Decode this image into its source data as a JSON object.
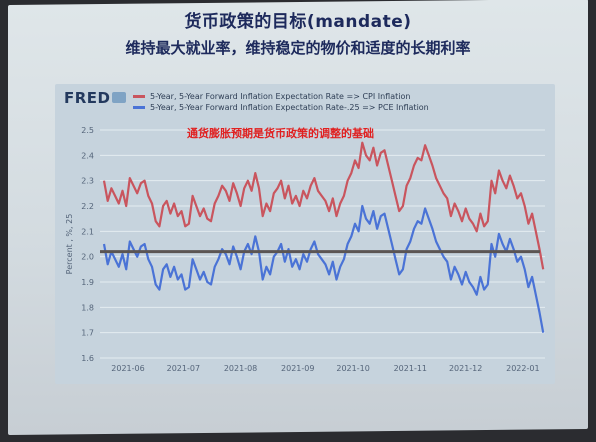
{
  "slide": {
    "title": "货币政策的目标(mandate)",
    "subtitle": "维持最大就业率，维持稳定的物价和适度的长期利率"
  },
  "fred": {
    "logo": "FRED"
  },
  "colors": {
    "cpi": "#c9555e",
    "pce": "#4a73d6",
    "reference": "#5b5553",
    "grid": "#e4ecf1",
    "annotation": "#e02020"
  },
  "chart_data": {
    "type": "line",
    "title": "",
    "annotation": "通货膨胀预期是货币政策的调整的基础",
    "ylabel": "Percent , %, 25",
    "xlabel": "",
    "ylim": [
      1.6,
      2.5
    ],
    "xlim": [
      0,
      226
    ],
    "yticks": [
      "1.6",
      "1.7",
      "1.8",
      "1.9",
      "2.0",
      "2.1",
      "2.2",
      "2.3",
      "2.4",
      "2.5"
    ],
    "xticks": [
      {
        "label": "2021-06",
        "x": 0
      },
      {
        "label": "2021-07",
        "x": 30
      },
      {
        "label": "2021-08",
        "x": 61
      },
      {
        "label": "2021-09",
        "x": 92
      },
      {
        "label": "2021-10",
        "x": 122
      },
      {
        "label": "2021-11",
        "x": 153
      },
      {
        "label": "2021-12",
        "x": 183
      },
      {
        "label": "2022-01",
        "x": 214
      }
    ],
    "reference_line": 2.02,
    "grid": true,
    "legend_position": "top-left",
    "series": [
      {
        "name": "5-Year, 5-Year Forward Inflation Expectation Rate => CPI Inflation",
        "x": [
          -13,
          -11,
          -9,
          -7,
          -5,
          -3,
          -1,
          1,
          3,
          5,
          7,
          9,
          11,
          13,
          15,
          17,
          19,
          21,
          23,
          25,
          27,
          29,
          31,
          33,
          35,
          37,
          39,
          41,
          43,
          45,
          47,
          49,
          51,
          53,
          55,
          57,
          59,
          61,
          63,
          65,
          67,
          69,
          71,
          73,
          75,
          77,
          79,
          81,
          83,
          85,
          87,
          89,
          91,
          93,
          95,
          97,
          99,
          101,
          103,
          105,
          107,
          109,
          111,
          113,
          115,
          117,
          119,
          121,
          123,
          125,
          127,
          129,
          131,
          133,
          135,
          137,
          139,
          141,
          143,
          145,
          147,
          149,
          151,
          153,
          155,
          157,
          159,
          161,
          163,
          165,
          167,
          169,
          171,
          173,
          175,
          177,
          179,
          181,
          183,
          185,
          187,
          189,
          191,
          193,
          195,
          197,
          199,
          201,
          203,
          205,
          207,
          209,
          211,
          213,
          215,
          217,
          219,
          221,
          223,
          225
        ],
        "values": [
          2.3,
          2.22,
          2.27,
          2.24,
          2.21,
          2.26,
          2.2,
          2.31,
          2.28,
          2.25,
          2.29,
          2.3,
          2.24,
          2.21,
          2.14,
          2.12,
          2.2,
          2.22,
          2.17,
          2.21,
          2.16,
          2.18,
          2.12,
          2.13,
          2.24,
          2.2,
          2.16,
          2.19,
          2.15,
          2.14,
          2.21,
          2.24,
          2.28,
          2.26,
          2.22,
          2.29,
          2.25,
          2.2,
          2.27,
          2.3,
          2.26,
          2.33,
          2.27,
          2.16,
          2.21,
          2.18,
          2.25,
          2.27,
          2.3,
          2.23,
          2.28,
          2.21,
          2.24,
          2.2,
          2.26,
          2.23,
          2.28,
          2.31,
          2.26,
          2.24,
          2.22,
          2.18,
          2.23,
          2.16,
          2.21,
          2.24,
          2.3,
          2.33,
          2.38,
          2.35,
          2.45,
          2.4,
          2.38,
          2.43,
          2.36,
          2.41,
          2.42,
          2.36,
          2.3,
          2.24,
          2.18,
          2.2,
          2.28,
          2.31,
          2.36,
          2.39,
          2.38,
          2.44,
          2.4,
          2.36,
          2.31,
          2.28,
          2.25,
          2.23,
          2.16,
          2.21,
          2.18,
          2.14,
          2.19,
          2.15,
          2.13,
          2.1,
          2.17,
          2.12,
          2.14,
          2.3,
          2.25,
          2.34,
          2.3,
          2.27,
          2.32,
          2.28,
          2.23,
          2.25,
          2.2,
          2.13,
          2.17,
          2.1,
          2.03,
          1.95
        ]
      },
      {
        "name": "5-Year, 5-Year Forward Inflation Expectation Rate-.25 => PCE Inflation",
        "x": [
          -13,
          -11,
          -9,
          -7,
          -5,
          -3,
          -1,
          1,
          3,
          5,
          7,
          9,
          11,
          13,
          15,
          17,
          19,
          21,
          23,
          25,
          27,
          29,
          31,
          33,
          35,
          37,
          39,
          41,
          43,
          45,
          47,
          49,
          51,
          53,
          55,
          57,
          59,
          61,
          63,
          65,
          67,
          69,
          71,
          73,
          75,
          77,
          79,
          81,
          83,
          85,
          87,
          89,
          91,
          93,
          95,
          97,
          99,
          101,
          103,
          105,
          107,
          109,
          111,
          113,
          115,
          117,
          119,
          121,
          123,
          125,
          127,
          129,
          131,
          133,
          135,
          137,
          139,
          141,
          143,
          145,
          147,
          149,
          151,
          153,
          155,
          157,
          159,
          161,
          163,
          165,
          167,
          169,
          171,
          173,
          175,
          177,
          179,
          181,
          183,
          185,
          187,
          189,
          191,
          193,
          195,
          197,
          199,
          201,
          203,
          205,
          207,
          209,
          211,
          213,
          215,
          217,
          219,
          221,
          223,
          225
        ],
        "values": [
          2.05,
          1.97,
          2.02,
          1.99,
          1.96,
          2.01,
          1.95,
          2.06,
          2.03,
          2.0,
          2.04,
          2.05,
          1.99,
          1.96,
          1.89,
          1.87,
          1.95,
          1.97,
          1.92,
          1.96,
          1.91,
          1.93,
          1.87,
          1.88,
          1.99,
          1.95,
          1.91,
          1.94,
          1.9,
          1.89,
          1.96,
          1.99,
          2.03,
          2.01,
          1.97,
          2.04,
          2.0,
          1.95,
          2.02,
          2.05,
          2.01,
          2.08,
          2.02,
          1.91,
          1.96,
          1.93,
          2.0,
          2.02,
          2.05,
          1.98,
          2.03,
          1.96,
          1.99,
          1.95,
          2.01,
          1.98,
          2.03,
          2.06,
          2.01,
          1.99,
          1.97,
          1.93,
          1.98,
          1.91,
          1.96,
          1.99,
          2.05,
          2.08,
          2.13,
          2.1,
          2.2,
          2.15,
          2.13,
          2.18,
          2.11,
          2.16,
          2.17,
          2.11,
          2.05,
          1.99,
          1.93,
          1.95,
          2.03,
          2.06,
          2.11,
          2.14,
          2.13,
          2.19,
          2.15,
          2.11,
          2.06,
          2.03,
          2.0,
          1.98,
          1.91,
          1.96,
          1.93,
          1.89,
          1.94,
          1.9,
          1.88,
          1.85,
          1.92,
          1.87,
          1.89,
          2.05,
          2.0,
          2.09,
          2.05,
          2.02,
          2.07,
          2.03,
          1.98,
          2.0,
          1.95,
          1.88,
          1.92,
          1.85,
          1.78,
          1.7
        ]
      }
    ]
  }
}
